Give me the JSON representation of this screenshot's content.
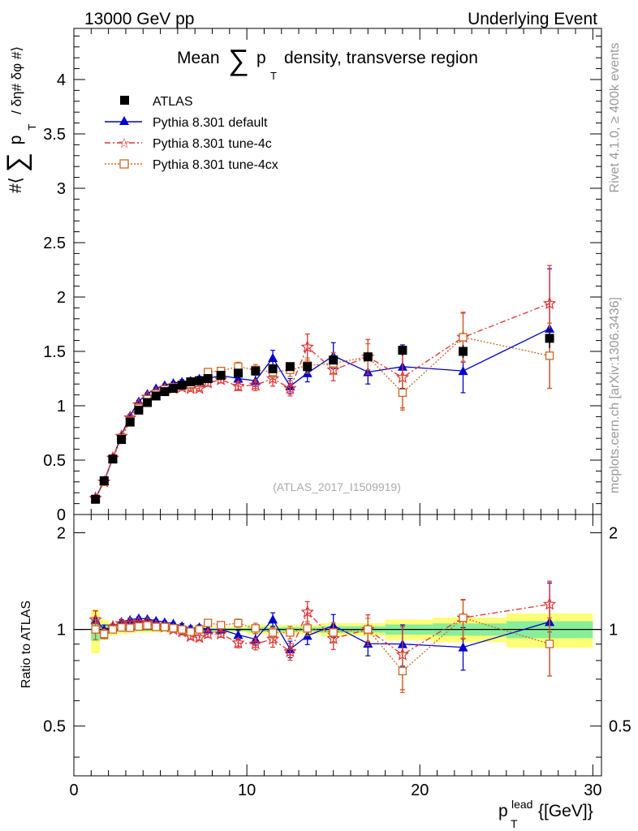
{
  "header": {
    "left": "13000 GeV pp",
    "right": "Underlying Event"
  },
  "side": {
    "rivet": "Rivet 4.1.0, ≥ 400k events",
    "mcplots": "mcplots.cern.ch [arXiv:1306.3436]"
  },
  "chart_data": {
    "type": "line",
    "title_prefix": "Mean",
    "title_sum": "∑",
    "title_p": "p",
    "title_sub": "T",
    "title_suffix": "density, transverse region",
    "ylabel_hash": "#⟨",
    "ylabel_sum": "∑",
    "ylabel_p": "p",
    "ylabel_sub": "T",
    "ylabel_rest": "/ δη# δφ #⟩",
    "ratio_ylabel": "Ratio to ATLAS",
    "xlabel_p": "p",
    "xlabel_sup": "lead",
    "xlabel_sub": "T",
    "xlabel_unit": "{[GeV]}",
    "watermark": "(ATLAS_2017_I1509919)",
    "xlim": [
      0,
      30.5
    ],
    "ylim": [
      0,
      4.47
    ],
    "ratio_ylim": [
      0.35,
      2.28
    ],
    "x_ticks": [
      "0",
      "10",
      "20",
      "30"
    ],
    "y_ticks": [
      "0",
      "0.5",
      "1",
      "1.5",
      "2",
      "2.5",
      "3",
      "3.5",
      "4"
    ],
    "ratio_ticks": [
      "0.5",
      "1",
      "2"
    ],
    "x": [
      1.25,
      1.75,
      2.25,
      2.75,
      3.25,
      3.75,
      4.25,
      4.75,
      5.25,
      5.75,
      6.25,
      6.75,
      7.25,
      7.75,
      8.5,
      9.5,
      10.5,
      11.5,
      12.5,
      13.5,
      15.0,
      17.0,
      19.0,
      22.5,
      27.5
    ],
    "legend": [
      "ATLAS",
      "Pythia 8.301 default",
      "Pythia 8.301 tune-4c",
      "Pythia 8.301 tune-4cx"
    ],
    "series": [
      {
        "name": "ATLAS",
        "color": "#000000",
        "values": [
          0.14,
          0.31,
          0.51,
          0.69,
          0.85,
          0.96,
          1.03,
          1.09,
          1.13,
          1.16,
          1.19,
          1.22,
          1.23,
          1.25,
          1.28,
          1.3,
          1.32,
          1.34,
          1.36,
          1.36,
          1.42,
          1.45,
          1.51,
          1.5,
          1.62
        ],
        "errors": [
          0.01,
          0.01,
          0.01,
          0.01,
          0.01,
          0.01,
          0.01,
          0.01,
          0.01,
          0.01,
          0.01,
          0.01,
          0.01,
          0.01,
          0.01,
          0.01,
          0.02,
          0.02,
          0.02,
          0.02,
          0.03,
          0.03,
          0.05,
          0.06,
          0.09
        ]
      },
      {
        "name": "Pythia 8.301 default",
        "color": "#0000cc",
        "values": [
          0.15,
          0.31,
          0.52,
          0.73,
          0.91,
          1.04,
          1.11,
          1.16,
          1.19,
          1.21,
          1.22,
          1.23,
          1.25,
          1.25,
          1.28,
          1.25,
          1.23,
          1.44,
          1.18,
          1.3,
          1.46,
          1.31,
          1.36,
          1.32,
          1.71
        ],
        "errors": [
          0.01,
          0.01,
          0.01,
          0.01,
          0.01,
          0.01,
          0.01,
          0.01,
          0.01,
          0.01,
          0.02,
          0.02,
          0.02,
          0.03,
          0.03,
          0.04,
          0.05,
          0.07,
          0.07,
          0.08,
          0.12,
          0.11,
          0.2,
          0.2,
          0.55
        ]
      },
      {
        "name": "Pythia 8.301 tune-4c",
        "color": "#dd3333",
        "values": [
          0.15,
          0.3,
          0.52,
          0.72,
          0.89,
          1.01,
          1.08,
          1.12,
          1.15,
          1.16,
          1.17,
          1.16,
          1.16,
          1.21,
          1.24,
          1.18,
          1.19,
          1.25,
          1.16,
          1.54,
          1.33,
          1.45,
          1.26,
          1.63,
          1.94
        ],
        "errors": [
          0.01,
          0.01,
          0.01,
          0.01,
          0.01,
          0.01,
          0.01,
          0.01,
          0.01,
          0.01,
          0.02,
          0.02,
          0.02,
          0.03,
          0.03,
          0.04,
          0.05,
          0.07,
          0.07,
          0.12,
          0.1,
          0.16,
          0.28,
          0.23,
          0.35
        ]
      },
      {
        "name": "Pythia 8.301 tune-4cx",
        "color": "#cc6622",
        "values": [
          0.14,
          0.3,
          0.51,
          0.7,
          0.86,
          0.98,
          1.06,
          1.11,
          1.15,
          1.17,
          1.19,
          1.2,
          1.23,
          1.31,
          1.32,
          1.36,
          1.33,
          1.31,
          1.33,
          1.37,
          1.39,
          1.45,
          1.12,
          1.63,
          1.46
        ],
        "errors": [
          0.01,
          0.01,
          0.01,
          0.01,
          0.01,
          0.01,
          0.01,
          0.01,
          0.01,
          0.01,
          0.02,
          0.02,
          0.02,
          0.03,
          0.03,
          0.04,
          0.05,
          0.05,
          0.06,
          0.07,
          0.1,
          0.12,
          0.16,
          0.22,
          0.3
        ]
      }
    ]
  }
}
